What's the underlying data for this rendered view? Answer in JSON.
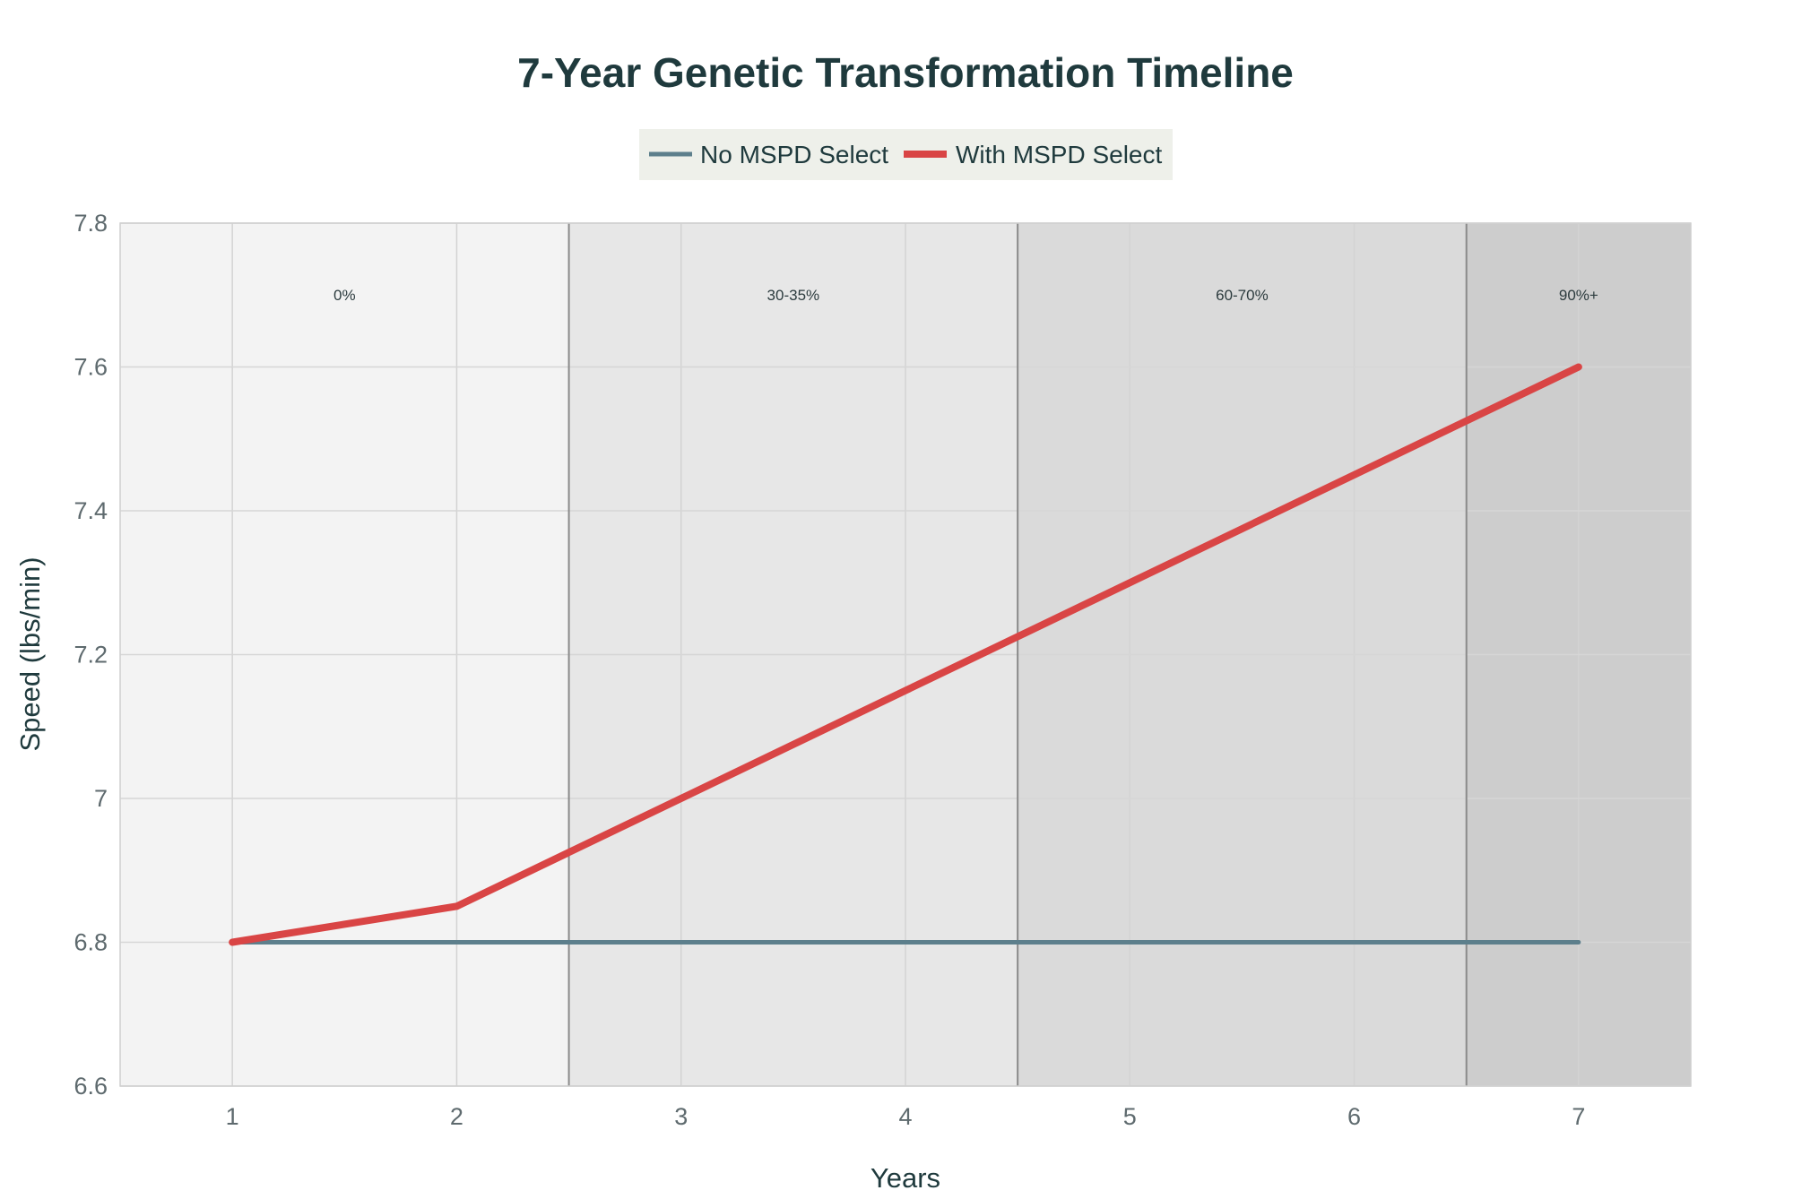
{
  "chart_data": {
    "type": "line",
    "title": "7-Year Genetic Transformation Timeline",
    "xlabel": "Years",
    "ylabel": "Speed (lbs/min)",
    "x": [
      1,
      2,
      3,
      4,
      5,
      6,
      7
    ],
    "xlim": [
      0.5,
      7.5
    ],
    "ylim": [
      6.6,
      7.8
    ],
    "xticks": [
      1,
      2,
      3,
      4,
      5,
      6,
      7
    ],
    "yticks": [
      6.6,
      6.8,
      7,
      7.2,
      7.4,
      7.6,
      7.8
    ],
    "ytick_labels": [
      "6.6",
      "6.8",
      "7",
      "7.2",
      "7.4",
      "7.6",
      "7.8"
    ],
    "grid": true,
    "legend_position": "top-center",
    "series": [
      {
        "name": "No MSPD Select",
        "color": "#5d7f8c",
        "values": [
          6.8,
          6.8,
          6.8,
          6.8,
          6.8,
          6.8,
          6.8
        ]
      },
      {
        "name": "With MSPD Select",
        "color": "#d94545",
        "values": [
          6.8,
          6.85,
          7.0,
          7.15,
          7.3,
          7.45,
          7.6
        ]
      }
    ],
    "bands": [
      {
        "x0": 0.5,
        "x1": 2.5,
        "label": "0%",
        "color": "#f3f3f3"
      },
      {
        "x0": 2.5,
        "x1": 4.5,
        "label": "30-35%",
        "color": "#e7e7e7"
      },
      {
        "x0": 4.5,
        "x1": 6.5,
        "label": "60-70%",
        "color": "#dadada"
      },
      {
        "x0": 6.5,
        "x1": 7.5,
        "label": "90%+",
        "color": "#cdcdcd"
      }
    ]
  }
}
